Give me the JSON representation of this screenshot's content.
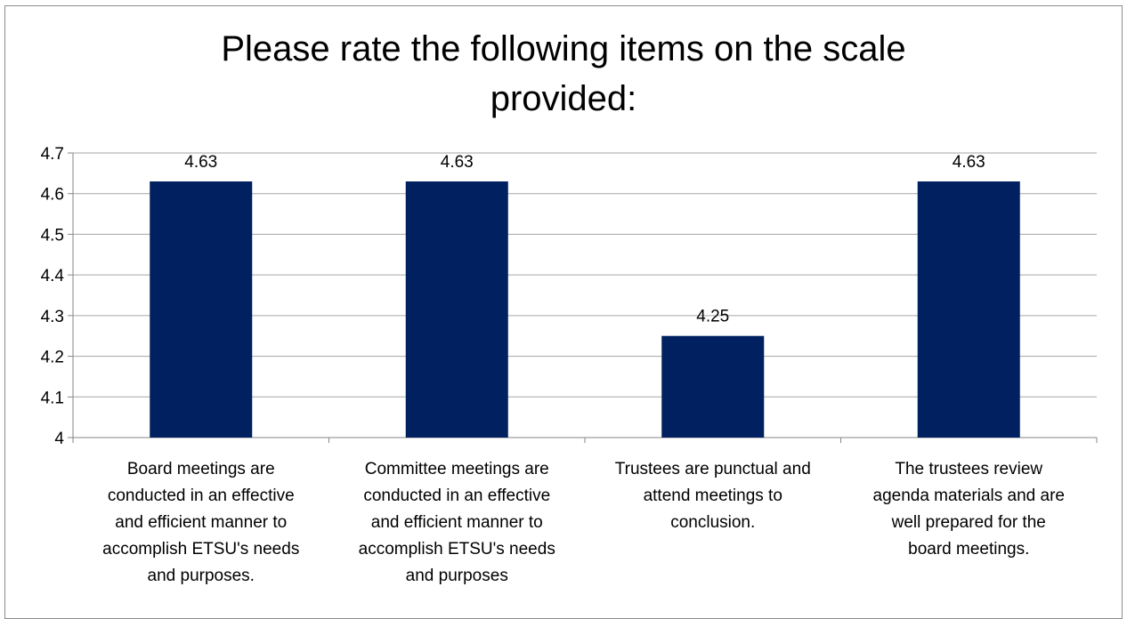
{
  "colors": {
    "bar": "#002060",
    "grid": "#a6a6a6",
    "axis": "#868686"
  },
  "chart_data": {
    "type": "bar",
    "title_lines": [
      "Please rate the following items on the scale",
      "provided:"
    ],
    "categories": [
      [
        "Board meetings are",
        "conducted in an effective",
        "and efficient manner to",
        "accomplish ETSU's needs",
        "and purposes."
      ],
      [
        "Committee meetings are",
        "conducted in an effective",
        "and efficient manner to",
        "accomplish ETSU's needs",
        "and purposes"
      ],
      [
        "Trustees are punctual and",
        "attend meetings to",
        "conclusion."
      ],
      [
        "The trustees review",
        "agenda materials and are",
        "well prepared for the",
        "board meetings."
      ]
    ],
    "values": [
      4.63,
      4.63,
      4.25,
      4.63
    ],
    "data_labels": [
      "4.63",
      "4.63",
      "4.25",
      "4.63"
    ],
    "ylim": [
      4,
      4.7
    ],
    "yticks": [
      "4",
      "4.1",
      "4.2",
      "4.3",
      "4.4",
      "4.5",
      "4.6",
      "4.7"
    ],
    "grid": true,
    "legend": "none"
  }
}
